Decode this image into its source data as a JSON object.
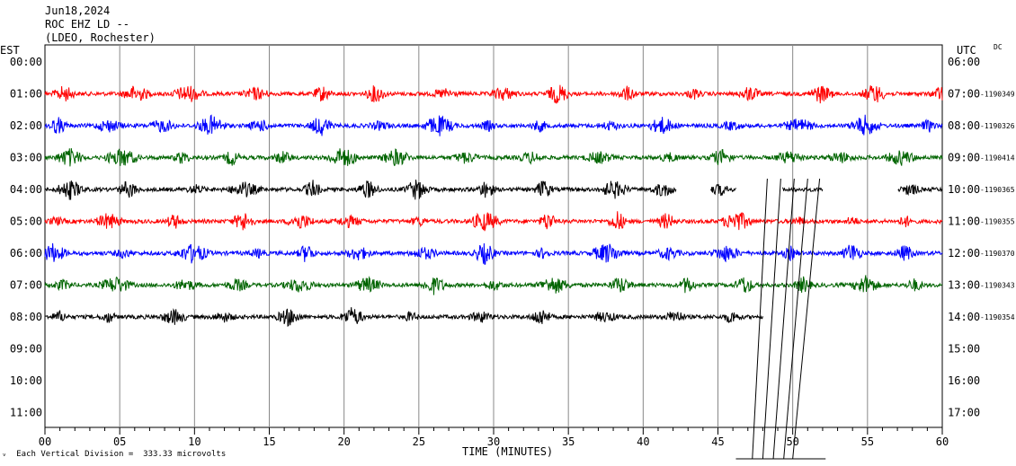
{
  "header": {
    "date": "Jun18,2024",
    "station": "ROC EHZ LD --",
    "network": "(LDEO, Rochester)"
  },
  "labels": {
    "left_zone": "EST",
    "right_zone": "UTC",
    "dc": "DC",
    "xlabel": "TIME (MINUTES)",
    "scale_note": "Each Vertical Division =  333.33 microvolts"
  },
  "chart_data": {
    "type": "line",
    "x_range": [
      0,
      60
    ],
    "x_ticks": [
      "00",
      "05",
      "10",
      "15",
      "20",
      "25",
      "30",
      "35",
      "40",
      "45",
      "50",
      "55",
      "60"
    ],
    "est_labels": [
      "00:00",
      "01:00",
      "02:00",
      "03:00",
      "04:00",
      "05:00",
      "06:00",
      "07:00",
      "08:00",
      "09:00",
      "10:00",
      "11:00"
    ],
    "utc_labels": [
      "06:00",
      "07:00",
      "08:00",
      "09:00",
      "10:00",
      "11:00",
      "12:00",
      "13:00",
      "14:00",
      "15:00",
      "16:00",
      "17:00"
    ],
    "trace_colors": [
      "#ff0000",
      "#0000ff",
      "#006400",
      "#000000"
    ],
    "traces": [
      {
        "row": 1,
        "color": "#ff0000",
        "start": 0,
        "end": 60,
        "dc": "-1190349"
      },
      {
        "row": 2,
        "color": "#0000ff",
        "start": 0,
        "end": 60,
        "dc": "-1190326"
      },
      {
        "row": 3,
        "color": "#006400",
        "start": 0,
        "end": 60,
        "dc": "-1190414"
      },
      {
        "row": 4,
        "color": "#000000",
        "start": 0,
        "end": 60,
        "gaps": [
          [
            42.2,
            44.5
          ],
          [
            46.2,
            49.3
          ],
          [
            52,
            57
          ]
        ],
        "dc": "-1190365"
      },
      {
        "row": 5,
        "color": "#ff0000",
        "start": 0,
        "end": 60,
        "dc": "-1190355"
      },
      {
        "row": 6,
        "color": "#0000ff",
        "start": 0,
        "end": 60,
        "dc": "-1190370"
      },
      {
        "row": 7,
        "color": "#006400",
        "start": 0,
        "end": 60,
        "dc": "-1190343"
      },
      {
        "row": 8,
        "color": "#000000",
        "start": 0,
        "end": 48,
        "dc": "-1190354"
      }
    ]
  }
}
